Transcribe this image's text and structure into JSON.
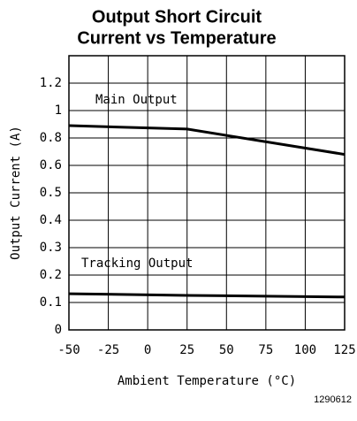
{
  "chart_data": {
    "type": "line",
    "title": [
      "Output Short Circuit",
      "Current vs Temperature"
    ],
    "xlabel": "Ambient Temperature (°C)",
    "ylabel": "Output Current (A)",
    "x": [
      -50,
      25,
      125
    ],
    "series": [
      {
        "name": "Main Output",
        "color": "#000000",
        "values": [
          0.89,
          0.865,
          0.68
        ]
      },
      {
        "name": "Tracking Output",
        "color": "#000000",
        "values": [
          0.132,
          0.126,
          0.12
        ]
      }
    ],
    "xlim": [
      -50,
      125
    ],
    "xticks": [
      -50,
      -25,
      0,
      25,
      50,
      75,
      100,
      125
    ],
    "ylim": [
      0,
      1.4
    ],
    "yticks": [
      0,
      0.1,
      0.2,
      0.3,
      0.4,
      0.5,
      0.6,
      0.8,
      1,
      1.2
    ],
    "grid": true,
    "figure_id": "1290612"
  }
}
